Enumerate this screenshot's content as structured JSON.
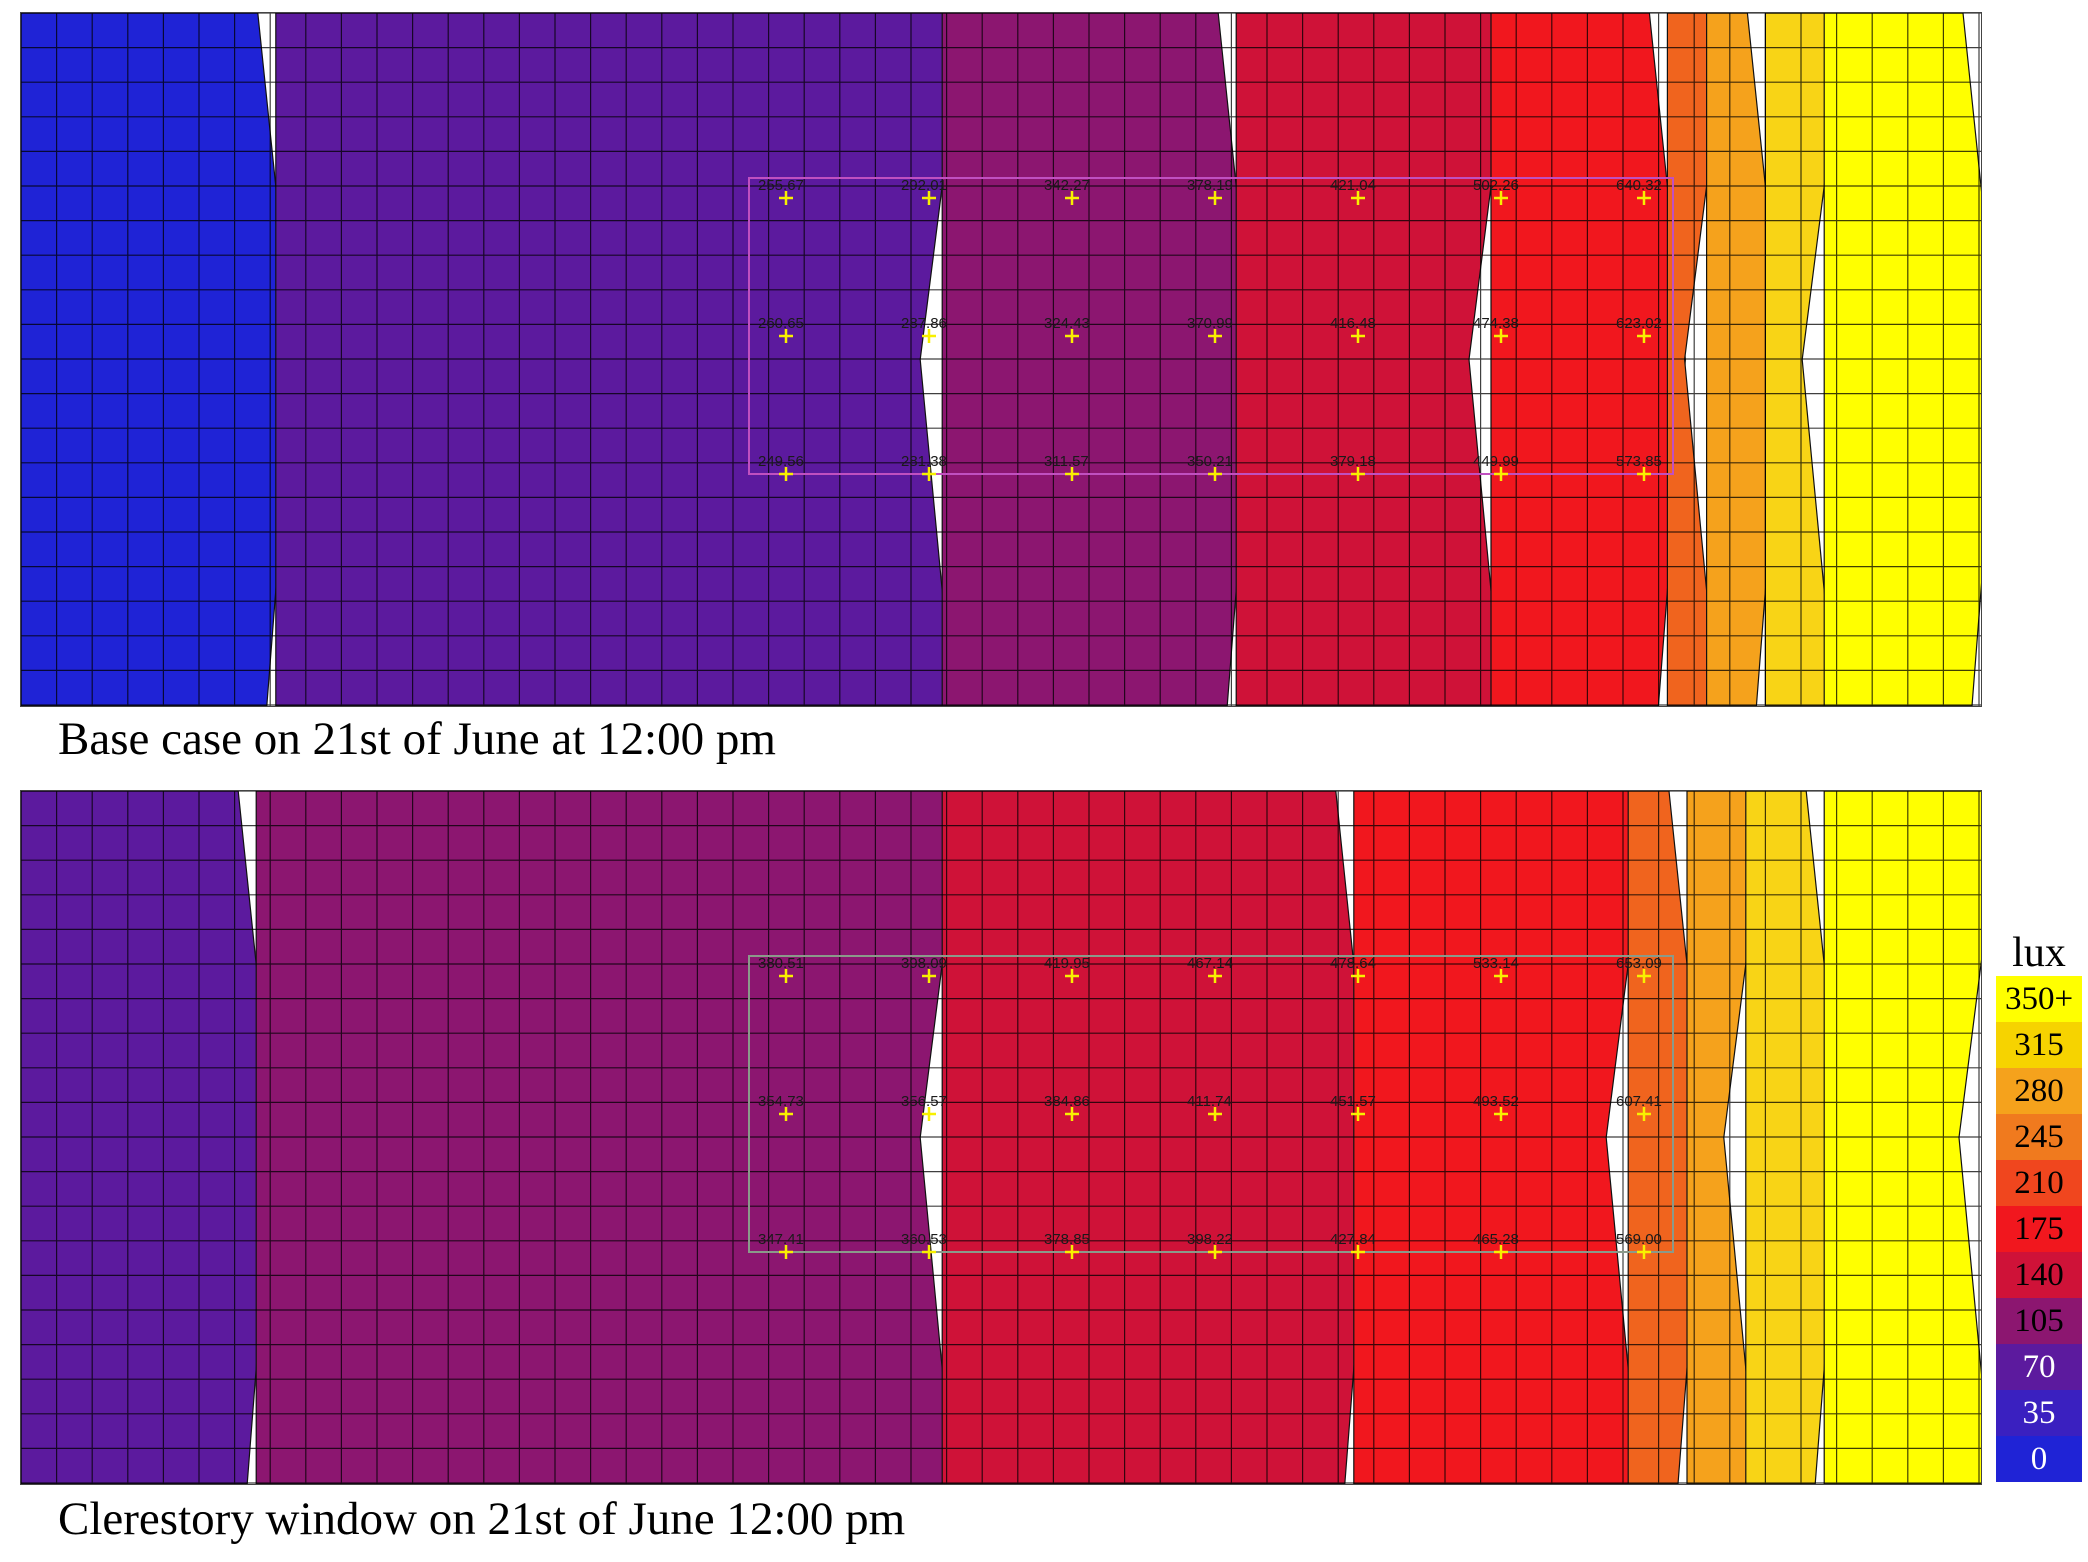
{
  "chart_data": [
    {
      "type": "heatmap",
      "title": "Base case on 21st of June at 12:00 pm",
      "rows": 3,
      "cols": 7,
      "values": [
        [
          255.67,
          292.01,
          342.27,
          378.19,
          421.04,
          502.26,
          640.32
        ],
        [
          260.65,
          287.86,
          324.43,
          370.99,
          416.48,
          474.38,
          623.02
        ],
        [
          249.56,
          281.38,
          311.57,
          350.21,
          379.18,
          449.99,
          573.85
        ]
      ],
      "contour_colors": [
        "#1f23d6",
        "#5c1a9e",
        "#8c1670",
        "#cf1238",
        "#f1171e",
        "#f0641e",
        "#f5a21c",
        "#f8d416",
        "#ffff00"
      ],
      "contour_breaks": [
        0.13,
        0.47,
        0.62,
        0.75,
        0.84,
        0.86,
        0.89,
        0.92
      ]
    },
    {
      "type": "heatmap",
      "title": "Clerestory window on 21st of June  12:00 pm",
      "rows": 3,
      "cols": 7,
      "values": [
        [
          380.51,
          398.09,
          419.95,
          467.14,
          478.64,
          533.14,
          653.09
        ],
        [
          354.73,
          356.57,
          384.86,
          411.74,
          451.57,
          493.52,
          607.41
        ],
        [
          347.41,
          360.53,
          378.85,
          398.22,
          427.84,
          465.28,
          569.0
        ]
      ],
      "contour_colors": [
        "#5c1a9e",
        "#8c1670",
        "#cf1238",
        "#f1171e",
        "#f0641e",
        "#f5a21c",
        "#f8d416",
        "#ffff00"
      ],
      "contour_breaks": [
        0.12,
        0.47,
        0.68,
        0.82,
        0.85,
        0.88,
        0.92
      ]
    }
  ],
  "legend": {
    "unit": "lux",
    "items": [
      {
        "label": "350+",
        "color": "#ffff00"
      },
      {
        "label": "315",
        "color": "#f6d300"
      },
      {
        "label": "280",
        "color": "#f5a21c"
      },
      {
        "label": "245",
        "color": "#f07a1e"
      },
      {
        "label": "210",
        "color": "#f0461e"
      },
      {
        "label": "175",
        "color": "#f1171e"
      },
      {
        "label": "140",
        "color": "#cf1238"
      },
      {
        "label": "105",
        "color": "#8c1670"
      },
      {
        "label": "70",
        "color": "#5c1a9e"
      },
      {
        "label": "35",
        "color": "#3a20c0"
      },
      {
        "label": "0",
        "color": "#1f23d6"
      }
    ]
  }
}
